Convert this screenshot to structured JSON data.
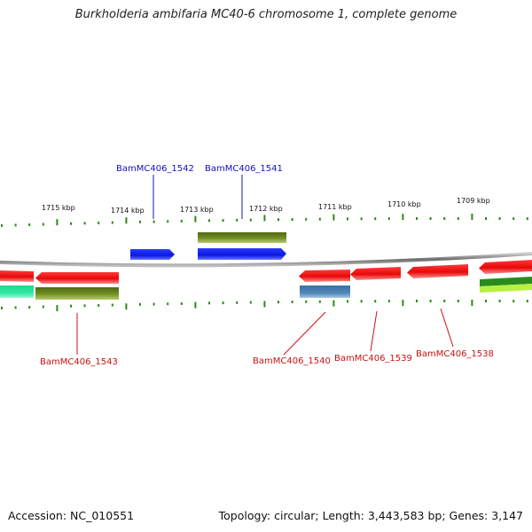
{
  "title": "Burkholderia ambifaria MC40-6 chromosome 1, complete genome",
  "accession": "Accession: NC_010551",
  "summary": "Topology: circular; Length: 3,443,583 bp; Genes: 3,147",
  "ruler": {
    "tick_labels": [
      "1715 kbp",
      "1714 kbp",
      "1713 kbp",
      "1712 kbp",
      "1711 kbp",
      "1710 kbp",
      "1709 kbp"
    ]
  },
  "colors": {
    "forward_gene": "#0a1fe8",
    "reverse_gene": "#ee0a12",
    "cds_olive": "#6e8a22",
    "cds_steelblue": "#4e86b8",
    "cds_teal": "#2ee8a0",
    "cds_green": "#2a8a1e",
    "cds_lime": "#b8f040",
    "tick_green": "#2d8a1a",
    "backbone": "#777777",
    "label_blue": "#1010c0",
    "label_red": "#cc1010"
  },
  "gene_labels": {
    "top": [
      "BamMC406_1542",
      "BamMC406_1541"
    ],
    "bottom": [
      "BamMC406_1543",
      "BamMC406_1540",
      "BamMC406_1539",
      "BamMC406_1538"
    ]
  }
}
